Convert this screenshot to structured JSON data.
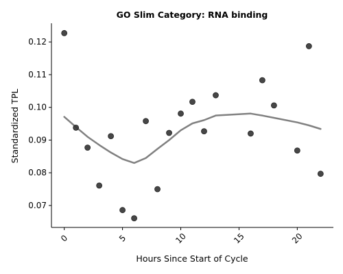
{
  "chart_data": {
    "type": "scatter",
    "title": "GO Slim Category: RNA binding",
    "xlabel": "Hours Since Start of Cycle",
    "ylabel": "Standardized TPL",
    "xlim": [
      -1.1,
      23.1
    ],
    "ylim": [
      0.0633,
      0.1257
    ],
    "xticks": [
      0,
      5,
      10,
      15,
      20
    ],
    "xtick_labels": [
      "0",
      "5",
      "10",
      "15",
      "20"
    ],
    "yticks": [
      0.07,
      0.08,
      0.09,
      0.1,
      0.11,
      0.12
    ],
    "ytick_labels": [
      "0.07",
      "0.08",
      "0.09",
      "0.10",
      "0.11",
      "0.12"
    ],
    "grid": false,
    "point_color": "#333333",
    "trend_color": "#808080",
    "points": [
      {
        "x": 0,
        "y": 0.1227
      },
      {
        "x": 1,
        "y": 0.0938
      },
      {
        "x": 2,
        "y": 0.0877
      },
      {
        "x": 3,
        "y": 0.0761
      },
      {
        "x": 4,
        "y": 0.0912
      },
      {
        "x": 5,
        "y": 0.0686
      },
      {
        "x": 6,
        "y": 0.0661
      },
      {
        "x": 7,
        "y": 0.0958
      },
      {
        "x": 8,
        "y": 0.075
      },
      {
        "x": 9,
        "y": 0.0922
      },
      {
        "x": 10,
        "y": 0.0981
      },
      {
        "x": 11,
        "y": 0.1017
      },
      {
        "x": 12,
        "y": 0.0927
      },
      {
        "x": 13,
        "y": 0.1037
      },
      {
        "x": 16,
        "y": 0.092
      },
      {
        "x": 17,
        "y": 0.1083
      },
      {
        "x": 18,
        "y": 0.1006
      },
      {
        "x": 20,
        "y": 0.0868
      },
      {
        "x": 21,
        "y": 0.1187
      },
      {
        "x": 22,
        "y": 0.0797
      }
    ],
    "trend": [
      {
        "x": 0,
        "y": 0.0971
      },
      {
        "x": 1,
        "y": 0.094
      },
      {
        "x": 2,
        "y": 0.091
      },
      {
        "x": 3,
        "y": 0.0885
      },
      {
        "x": 4,
        "y": 0.0862
      },
      {
        "x": 5,
        "y": 0.0842
      },
      {
        "x": 6,
        "y": 0.083
      },
      {
        "x": 7,
        "y": 0.0845
      },
      {
        "x": 8,
        "y": 0.0873
      },
      {
        "x": 9,
        "y": 0.09
      },
      {
        "x": 10,
        "y": 0.093
      },
      {
        "x": 11,
        "y": 0.0951
      },
      {
        "x": 12,
        "y": 0.0961
      },
      {
        "x": 13,
        "y": 0.0975
      },
      {
        "x": 16,
        "y": 0.0981
      },
      {
        "x": 17,
        "y": 0.0975
      },
      {
        "x": 18,
        "y": 0.0968
      },
      {
        "x": 20,
        "y": 0.0954
      },
      {
        "x": 21,
        "y": 0.0945
      },
      {
        "x": 22,
        "y": 0.0934
      }
    ]
  }
}
